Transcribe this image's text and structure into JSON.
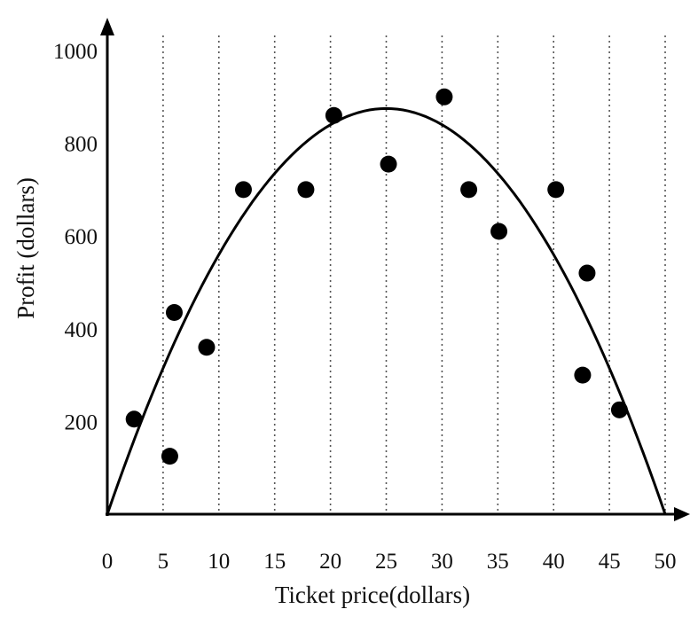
{
  "chart_data": {
    "type": "scatter",
    "title": "",
    "xlabel": "Ticket price(dollars)",
    "ylabel": "Profit (dollars)",
    "xlim": [
      0,
      50
    ],
    "ylim": [
      0,
      1000
    ],
    "x_ticks": [
      0,
      5,
      10,
      15,
      20,
      25,
      30,
      35,
      40,
      45,
      50
    ],
    "x_tick_labels": [
      "0",
      "5",
      "10",
      "15",
      "20",
      "25",
      "30",
      "35",
      "40",
      "45",
      "50"
    ],
    "y_ticks": [
      200,
      400,
      600,
      800,
      1000
    ],
    "y_tick_labels": [
      "200",
      "400",
      "600",
      "800",
      "1000"
    ],
    "grid": "vertical dotted lines at x ticks",
    "legend": "none",
    "points": [
      {
        "x": 2.4,
        "y": 205
      },
      {
        "x": 5.6,
        "y": 125
      },
      {
        "x": 6.0,
        "y": 435
      },
      {
        "x": 8.9,
        "y": 360
      },
      {
        "x": 12.2,
        "y": 700
      },
      {
        "x": 17.8,
        "y": 700
      },
      {
        "x": 20.3,
        "y": 860
      },
      {
        "x": 25.2,
        "y": 755
      },
      {
        "x": 30.2,
        "y": 900
      },
      {
        "x": 32.4,
        "y": 700
      },
      {
        "x": 35.1,
        "y": 610
      },
      {
        "x": 40.2,
        "y": 700
      },
      {
        "x": 42.6,
        "y": 300
      },
      {
        "x": 43.0,
        "y": 520
      },
      {
        "x": 45.9,
        "y": 225
      }
    ],
    "fit_curve": {
      "type": "quadratic",
      "description": "y = a*x*(50 - x), peak at x = 25",
      "a": 1.4,
      "peak": {
        "x": 25,
        "y": 875
      }
    },
    "colors": {
      "points": "#000000",
      "curve": "#000000",
      "grid": "#555555",
      "axes": "#000000"
    }
  }
}
